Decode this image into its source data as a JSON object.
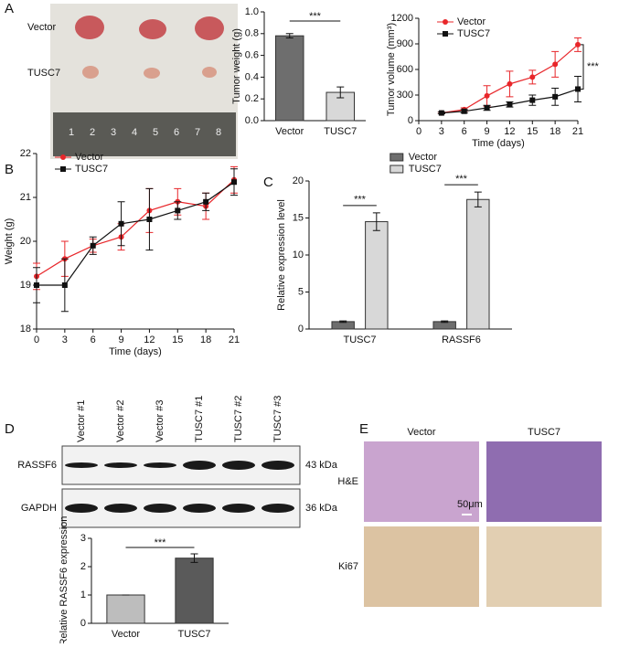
{
  "panels": [
    "A",
    "B",
    "C",
    "D",
    "E"
  ],
  "photo": {
    "rows": [
      "Vector",
      "TUSC7"
    ],
    "ruler": [
      "1",
      "2",
      "3",
      "4",
      "5",
      "6",
      "7",
      "8"
    ]
  },
  "blot": {
    "lanes": [
      "Vector #1",
      "Vector #2",
      "Vector #3",
      "TUSC7 #1",
      "TUSC7 #2",
      "TUSC7 #3"
    ],
    "rows": [
      {
        "label": "RASSF6",
        "size": "43 kDa"
      },
      {
        "label": "GAPDH",
        "size": "36 kDa"
      }
    ]
  },
  "histology": {
    "columns": [
      "Vector",
      "TUSC7"
    ],
    "rows": [
      "H&E",
      "Ki67"
    ],
    "scale": "50μm"
  },
  "chart_data": [
    {
      "type": "bar",
      "ylabel": "Tumor weight (g)",
      "categories": [
        "Vector",
        "TUSC7"
      ],
      "values": [
        0.78,
        0.26
      ],
      "errors": [
        0.02,
        0.05
      ],
      "colors": [
        "#6e6e6e",
        "#d8d8d8"
      ],
      "ylim": [
        0,
        1.0
      ],
      "yticks": [
        {
          "value": 0,
          "label": "0.0"
        },
        0.2,
        0.4,
        0.6,
        0.8,
        {
          "value": 1,
          "label": "1.0"
        }
      ],
      "significance": "***"
    },
    {
      "type": "line",
      "ylabel": "Tumor volume (mm³)",
      "xlabel": "Time (days)",
      "x": [
        3,
        6,
        9,
        12,
        15,
        18,
        21
      ],
      "xlim": [
        0,
        21
      ],
      "xticks": [
        0,
        3,
        6,
        9,
        12,
        15,
        18,
        21
      ],
      "ylim": [
        0,
        1200
      ],
      "yticks": [
        0,
        300,
        600,
        900,
        1200
      ],
      "legend": "upper left",
      "significance": "***",
      "series": [
        {
          "name": "Vector",
          "color": "#e8262a",
          "marker": "circle",
          "values": [
            90,
            130,
            290,
            430,
            510,
            660,
            890
          ],
          "errors": [
            10,
            20,
            120,
            150,
            80,
            150,
            80
          ]
        },
        {
          "name": "TUSC7",
          "color": "#111111",
          "marker": "square",
          "values": [
            90,
            110,
            150,
            190,
            240,
            280,
            370
          ],
          "errors": [
            10,
            20,
            30,
            30,
            60,
            100,
            150
          ]
        }
      ]
    },
    {
      "type": "line",
      "ylabel": "Weight (g)",
      "xlabel": "Time (days)",
      "x": [
        0,
        3,
        6,
        9,
        12,
        15,
        18,
        21
      ],
      "xlim": [
        0,
        21
      ],
      "xticks": [
        0,
        3,
        6,
        9,
        12,
        15,
        18,
        21
      ],
      "ylim": [
        18,
        22
      ],
      "yticks": [
        18,
        19,
        20,
        21,
        22
      ],
      "legend": "upper left",
      "series": [
        {
          "name": "Vector",
          "color": "#e8262a",
          "marker": "circle",
          "values": [
            19.2,
            19.6,
            19.9,
            20.1,
            20.7,
            20.9,
            20.8,
            21.4
          ],
          "errors": [
            0.3,
            0.4,
            0.15,
            0.3,
            0.5,
            0.3,
            0.3,
            0.3
          ]
        },
        {
          "name": "TUSC7",
          "color": "#111111",
          "marker": "square",
          "values": [
            19.0,
            19.0,
            19.9,
            20.4,
            20.5,
            20.7,
            20.9,
            21.35
          ],
          "errors": [
            0.4,
            0.6,
            0.2,
            0.5,
            0.7,
            0.2,
            0.2,
            0.3
          ]
        }
      ]
    },
    {
      "type": "groupbar",
      "ylabel": "Relative expression level",
      "categories": [
        "TUSC7",
        "RASSF6"
      ],
      "ylim": [
        0,
        20
      ],
      "yticks": [
        0,
        5,
        10,
        15,
        20
      ],
      "legend": "top",
      "significance": "***",
      "series": [
        {
          "name": "Vector",
          "color": "#6e6e6e",
          "values": [
            1,
            1
          ],
          "errors": [
            0.1,
            0.1
          ]
        },
        {
          "name": "TUSC7",
          "color": "#d8d8d8",
          "values": [
            14.5,
            17.5
          ],
          "errors": [
            1.2,
            1
          ]
        }
      ]
    },
    {
      "type": "bar",
      "ylabel": "Relative RASSF6 expression",
      "categories": [
        "Vector",
        "TUSC7"
      ],
      "values": [
        1,
        2.3
      ],
      "errors": [
        0,
        0.15
      ],
      "colors": [
        "#bdbdbd",
        "#5a5a5a"
      ],
      "ylim": [
        0,
        3
      ],
      "yticks": [
        0,
        1,
        2,
        3
      ],
      "significance": "***"
    }
  ]
}
